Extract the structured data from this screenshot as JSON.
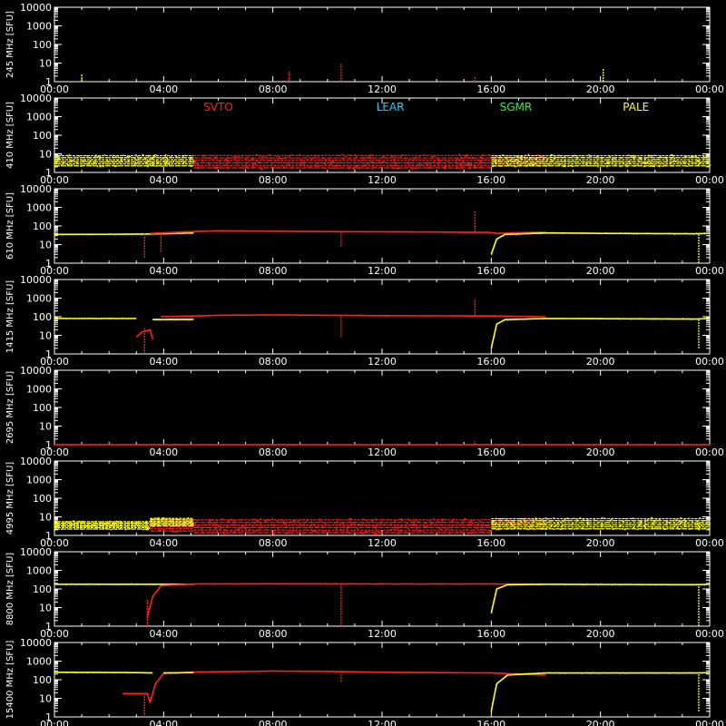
{
  "chart_data": {
    "type": "line",
    "xticks": [
      "00:00",
      "04:00",
      "08:00",
      "12:00",
      "16:00",
      "20:00",
      "00:00"
    ],
    "xlim_hours": [
      0,
      24
    ],
    "yticks": [
      "10000",
      "1000",
      "100",
      "10",
      "1"
    ],
    "ylim": [
      1,
      10000
    ],
    "yscale": "log",
    "ylabel_unit": "[SFU]",
    "stations": [
      {
        "name": "SVTO",
        "color": "#ff2020"
      },
      {
        "name": "LEAR",
        "color": "#20d0ff"
      },
      {
        "name": "SGMR",
        "color": "#20ff20"
      },
      {
        "name": "PALE",
        "color": "#ffff20"
      }
    ],
    "panels": [
      {
        "freq": "245 MHz",
        "segments": [],
        "noise": [],
        "spikes": [
          {
            "t": 1.0,
            "lo": 1.0,
            "hi": 2.5,
            "color": "#ffff20"
          },
          {
            "t": 8.6,
            "lo": 1.0,
            "hi": 4.0,
            "color": "#ff2020"
          },
          {
            "t": 10.5,
            "lo": 1.0,
            "hi": 9.0,
            "color": "#ff2020"
          },
          {
            "t": 15.4,
            "lo": 1.0,
            "hi": 2.0,
            "color": "#ff2020"
          },
          {
            "t": 20.1,
            "lo": 1.0,
            "hi": 5.0,
            "color": "#ffff20"
          }
        ]
      },
      {
        "freq": "410 MHz",
        "segments": [],
        "noise": [
          {
            "t0": 0.0,
            "t1": 5.1,
            "lo": 2.0,
            "hi": 9.0,
            "color": "#ffff20"
          },
          {
            "t0": 5.1,
            "t1": 16.0,
            "lo": 1.5,
            "hi": 9.5,
            "color": "#ff2020"
          },
          {
            "t0": 16.0,
            "t1": 18.0,
            "lo": 2.0,
            "hi": 9.0,
            "color": "#ff2020"
          },
          {
            "t0": 16.0,
            "t1": 24.0,
            "lo": 2.0,
            "hi": 9.0,
            "color": "#ffff20"
          }
        ],
        "spikes": [],
        "show_labels": true
      },
      {
        "freq": "610 MHz",
        "segments": [
          {
            "color": "#ffff20",
            "points": [
              [
                0.0,
                35
              ],
              [
                2.5,
                36
              ],
              [
                3.3,
                37
              ],
              [
                4.0,
                38
              ],
              [
                5.1,
                42
              ]
            ]
          },
          {
            "color": "#ff2020",
            "points": [
              [
                3.5,
                40
              ],
              [
                5.1,
                50
              ],
              [
                6.0,
                55
              ],
              [
                8.0,
                52
              ],
              [
                10.0,
                50
              ],
              [
                12.0,
                49
              ],
              [
                14.0,
                47
              ],
              [
                15.9,
                45
              ],
              [
                16.2,
                40
              ],
              [
                17.0,
                44
              ],
              [
                18.0,
                46
              ]
            ]
          },
          {
            "color": "#ffff20",
            "points": [
              [
                16.0,
                3
              ],
              [
                16.2,
                20
              ],
              [
                16.5,
                35
              ],
              [
                18.0,
                42
              ],
              [
                20.0,
                40
              ],
              [
                23.5,
                38
              ],
              [
                24.0,
                40
              ]
            ]
          }
        ],
        "noise": [],
        "spikes": [
          {
            "t": 3.3,
            "lo": 2.0,
            "hi": 38,
            "color": "#ff2020"
          },
          {
            "t": 3.9,
            "lo": 4.0,
            "hi": 40,
            "color": "#ff2020"
          },
          {
            "t": 10.5,
            "lo": 8.0,
            "hi": 50,
            "color": "#ff2020"
          },
          {
            "t": 15.4,
            "lo": 45,
            "hi": 600,
            "color": "#ff2020"
          },
          {
            "t": 23.6,
            "lo": 1.0,
            "hi": 40,
            "color": "#ffff20"
          }
        ]
      },
      {
        "freq": "1415 MHz",
        "segments": [
          {
            "color": "#ffff20",
            "points": [
              [
                0.0,
                80
              ],
              [
                3.0,
                80
              ]
            ]
          },
          {
            "color": "#ff2020",
            "points": [
              [
                3.0,
                8
              ],
              [
                3.2,
                15
              ],
              [
                3.5,
                20
              ],
              [
                3.6,
                6
              ]
            ]
          },
          {
            "color": "#ffff20",
            "points": [
              [
                3.6,
                70
              ],
              [
                5.1,
                72
              ]
            ]
          },
          {
            "color": "#ff2020",
            "points": [
              [
                3.9,
                100
              ],
              [
                5.1,
                110
              ],
              [
                6.0,
                120
              ],
              [
                8.0,
                125
              ],
              [
                10.0,
                120
              ],
              [
                12.0,
                115
              ],
              [
                14.0,
                112
              ],
              [
                16.0,
                110
              ],
              [
                18.0,
                100
              ]
            ]
          },
          {
            "color": "#ffff20",
            "points": [
              [
                16.0,
                2
              ],
              [
                16.2,
                40
              ],
              [
                16.5,
                70
              ],
              [
                18.0,
                80
              ],
              [
                20.0,
                78
              ],
              [
                23.5,
                75
              ],
              [
                24.0,
                80
              ]
            ]
          }
        ],
        "noise": [],
        "spikes": [
          {
            "t": 3.3,
            "lo": 1.0,
            "hi": 25,
            "color": "#ff2020"
          },
          {
            "t": 10.5,
            "lo": 8.0,
            "hi": 120,
            "color": "#ff2020"
          },
          {
            "t": 15.4,
            "lo": 110,
            "hi": 900,
            "color": "#ff2020"
          },
          {
            "t": 23.6,
            "lo": 2.0,
            "hi": 75,
            "color": "#ffff20"
          }
        ]
      },
      {
        "freq": "2695 MHz",
        "segments": [
          {
            "color": "#ff2020",
            "points": [
              [
                0.0,
                1.0
              ],
              [
                24.0,
                1.0
              ]
            ]
          }
        ],
        "noise": [],
        "spikes": [
          {
            "t": 15.4,
            "lo": 1.0,
            "hi": 1.6,
            "color": "#ff2020"
          }
        ]
      },
      {
        "freq": "4995 MHz",
        "segments": [],
        "noise": [
          {
            "t0": 0.0,
            "t1": 3.5,
            "lo": 2.0,
            "hi": 6.0,
            "color": "#ffff20"
          },
          {
            "t0": 3.5,
            "t1": 5.1,
            "lo": 1.5,
            "hi": 8.0,
            "color": "#ff2020"
          },
          {
            "t0": 3.5,
            "t1": 5.1,
            "lo": 3.0,
            "hi": 9.0,
            "color": "#ffff20"
          },
          {
            "t0": 5.1,
            "t1": 16.0,
            "lo": 1.2,
            "hi": 8.0,
            "color": "#ff2020"
          },
          {
            "t0": 16.0,
            "t1": 18.0,
            "lo": 2.0,
            "hi": 9.0,
            "color": "#ff2020"
          },
          {
            "t0": 16.0,
            "t1": 24.0,
            "lo": 2.0,
            "hi": 9.0,
            "color": "#ffff20"
          }
        ],
        "spikes": []
      },
      {
        "freq": "8800 MHz",
        "segments": [
          {
            "color": "#ffff20",
            "points": [
              [
                0.0,
                180
              ],
              [
                3.5,
                180
              ],
              [
                5.1,
                180
              ]
            ]
          },
          {
            "color": "#ff2020",
            "points": [
              [
                3.4,
                3
              ],
              [
                3.6,
                40
              ],
              [
                3.9,
                150
              ],
              [
                5.1,
                185
              ],
              [
                8.0,
                190
              ],
              [
                10.0,
                188
              ],
              [
                12.0,
                186
              ],
              [
                14.0,
                185
              ],
              [
                16.0,
                185
              ],
              [
                18.0,
                180
              ]
            ]
          },
          {
            "color": "#ffff20",
            "points": [
              [
                16.0,
                5
              ],
              [
                16.2,
                100
              ],
              [
                16.6,
                170
              ],
              [
                18.0,
                180
              ],
              [
                20.0,
                175
              ],
              [
                23.5,
                170
              ],
              [
                24.0,
                180
              ]
            ]
          }
        ],
        "noise": [],
        "spikes": [
          {
            "t": 3.4,
            "lo": 1.0,
            "hi": 30,
            "color": "#ff2020"
          },
          {
            "t": 10.5,
            "lo": 1.0,
            "hi": 190,
            "color": "#ff2020"
          },
          {
            "t": 23.6,
            "lo": 1.0,
            "hi": 170,
            "color": "#ffff20"
          }
        ]
      },
      {
        "freq": "15400 MHz",
        "segments": [
          {
            "color": "#ffff20",
            "points": [
              [
                0.0,
                250
              ],
              [
                3.0,
                240
              ],
              [
                3.6,
                230
              ]
            ]
          },
          {
            "color": "#ff2020",
            "points": [
              [
                2.5,
                18
              ],
              [
                3.4,
                18
              ],
              [
                3.5,
                6
              ],
              [
                3.7,
                60
              ],
              [
                4.0,
                220
              ],
              [
                5.1,
                260
              ],
              [
                8.0,
                290
              ],
              [
                10.0,
                280
              ],
              [
                12.0,
                250
              ],
              [
                14.0,
                240
              ],
              [
                16.0,
                230
              ],
              [
                18.0,
                180
              ]
            ]
          },
          {
            "color": "#ffff20",
            "points": [
              [
                4.0,
                230
              ],
              [
                5.1,
                240
              ]
            ]
          },
          {
            "color": "#ffff20",
            "points": [
              [
                16.0,
                2
              ],
              [
                16.2,
                60
              ],
              [
                16.6,
                180
              ],
              [
                18.0,
                230
              ],
              [
                20.0,
                230
              ],
              [
                23.5,
                230
              ],
              [
                24.0,
                240
              ]
            ]
          }
        ],
        "noise": [],
        "spikes": [
          {
            "t": 3.3,
            "lo": 1.0,
            "hi": 20,
            "color": "#ff2020"
          },
          {
            "t": 10.5,
            "lo": 80,
            "hi": 280,
            "color": "#ff2020"
          },
          {
            "t": 23.6,
            "lo": 2.0,
            "hi": 230,
            "color": "#ffff20"
          }
        ]
      }
    ]
  }
}
